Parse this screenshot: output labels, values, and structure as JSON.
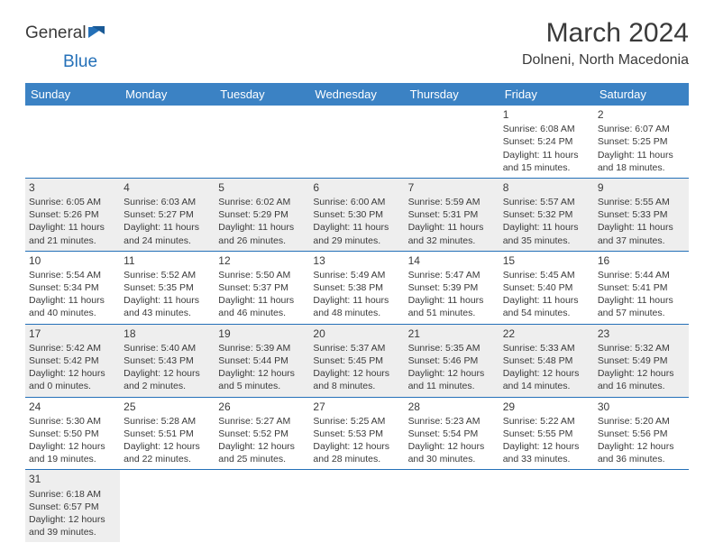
{
  "logo": {
    "part1": "General",
    "part2": "Blue"
  },
  "title": "March 2024",
  "location": "Dolneni, North Macedonia",
  "colors": {
    "header_bg": "#3b82c4",
    "header_text": "#ffffff",
    "alt_row_bg": "#eeeeee",
    "row_border": "#2470b8",
    "text": "#3a3a3a",
    "logo_blue": "#2470b8"
  },
  "dayHeaders": [
    "Sunday",
    "Monday",
    "Tuesday",
    "Wednesday",
    "Thursday",
    "Friday",
    "Saturday"
  ],
  "weeks": [
    [
      null,
      null,
      null,
      null,
      null,
      {
        "n": "1",
        "sr": "6:08 AM",
        "ss": "5:24 PM",
        "dl": "11 hours and 15 minutes."
      },
      {
        "n": "2",
        "sr": "6:07 AM",
        "ss": "5:25 PM",
        "dl": "11 hours and 18 minutes."
      }
    ],
    [
      {
        "n": "3",
        "sr": "6:05 AM",
        "ss": "5:26 PM",
        "dl": "11 hours and 21 minutes."
      },
      {
        "n": "4",
        "sr": "6:03 AM",
        "ss": "5:27 PM",
        "dl": "11 hours and 24 minutes."
      },
      {
        "n": "5",
        "sr": "6:02 AM",
        "ss": "5:29 PM",
        "dl": "11 hours and 26 minutes."
      },
      {
        "n": "6",
        "sr": "6:00 AM",
        "ss": "5:30 PM",
        "dl": "11 hours and 29 minutes."
      },
      {
        "n": "7",
        "sr": "5:59 AM",
        "ss": "5:31 PM",
        "dl": "11 hours and 32 minutes."
      },
      {
        "n": "8",
        "sr": "5:57 AM",
        "ss": "5:32 PM",
        "dl": "11 hours and 35 minutes."
      },
      {
        "n": "9",
        "sr": "5:55 AM",
        "ss": "5:33 PM",
        "dl": "11 hours and 37 minutes."
      }
    ],
    [
      {
        "n": "10",
        "sr": "5:54 AM",
        "ss": "5:34 PM",
        "dl": "11 hours and 40 minutes."
      },
      {
        "n": "11",
        "sr": "5:52 AM",
        "ss": "5:35 PM",
        "dl": "11 hours and 43 minutes."
      },
      {
        "n": "12",
        "sr": "5:50 AM",
        "ss": "5:37 PM",
        "dl": "11 hours and 46 minutes."
      },
      {
        "n": "13",
        "sr": "5:49 AM",
        "ss": "5:38 PM",
        "dl": "11 hours and 48 minutes."
      },
      {
        "n": "14",
        "sr": "5:47 AM",
        "ss": "5:39 PM",
        "dl": "11 hours and 51 minutes."
      },
      {
        "n": "15",
        "sr": "5:45 AM",
        "ss": "5:40 PM",
        "dl": "11 hours and 54 minutes."
      },
      {
        "n": "16",
        "sr": "5:44 AM",
        "ss": "5:41 PM",
        "dl": "11 hours and 57 minutes."
      }
    ],
    [
      {
        "n": "17",
        "sr": "5:42 AM",
        "ss": "5:42 PM",
        "dl": "12 hours and 0 minutes."
      },
      {
        "n": "18",
        "sr": "5:40 AM",
        "ss": "5:43 PM",
        "dl": "12 hours and 2 minutes."
      },
      {
        "n": "19",
        "sr": "5:39 AM",
        "ss": "5:44 PM",
        "dl": "12 hours and 5 minutes."
      },
      {
        "n": "20",
        "sr": "5:37 AM",
        "ss": "5:45 PM",
        "dl": "12 hours and 8 minutes."
      },
      {
        "n": "21",
        "sr": "5:35 AM",
        "ss": "5:46 PM",
        "dl": "12 hours and 11 minutes."
      },
      {
        "n": "22",
        "sr": "5:33 AM",
        "ss": "5:48 PM",
        "dl": "12 hours and 14 minutes."
      },
      {
        "n": "23",
        "sr": "5:32 AM",
        "ss": "5:49 PM",
        "dl": "12 hours and 16 minutes."
      }
    ],
    [
      {
        "n": "24",
        "sr": "5:30 AM",
        "ss": "5:50 PM",
        "dl": "12 hours and 19 minutes."
      },
      {
        "n": "25",
        "sr": "5:28 AM",
        "ss": "5:51 PM",
        "dl": "12 hours and 22 minutes."
      },
      {
        "n": "26",
        "sr": "5:27 AM",
        "ss": "5:52 PM",
        "dl": "12 hours and 25 minutes."
      },
      {
        "n": "27",
        "sr": "5:25 AM",
        "ss": "5:53 PM",
        "dl": "12 hours and 28 minutes."
      },
      {
        "n": "28",
        "sr": "5:23 AM",
        "ss": "5:54 PM",
        "dl": "12 hours and 30 minutes."
      },
      {
        "n": "29",
        "sr": "5:22 AM",
        "ss": "5:55 PM",
        "dl": "12 hours and 33 minutes."
      },
      {
        "n": "30",
        "sr": "5:20 AM",
        "ss": "5:56 PM",
        "dl": "12 hours and 36 minutes."
      }
    ],
    [
      {
        "n": "31",
        "sr": "6:18 AM",
        "ss": "6:57 PM",
        "dl": "12 hours and 39 minutes."
      },
      null,
      null,
      null,
      null,
      null,
      null
    ]
  ],
  "labels": {
    "sunrise": "Sunrise:",
    "sunset": "Sunset:",
    "daylight": "Daylight:"
  }
}
